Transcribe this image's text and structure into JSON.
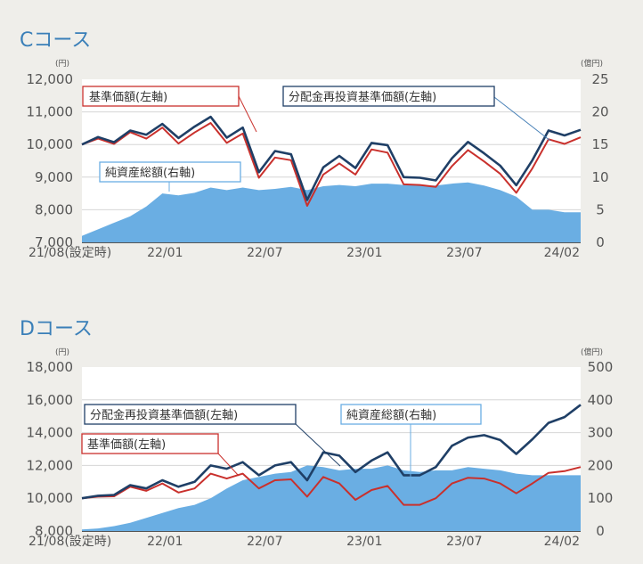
{
  "chart_data": [
    {
      "type": "line",
      "title": "Cコース",
      "left_unit": "(円)",
      "right_unit": "(億円)",
      "ylim_left": [
        7000,
        12000
      ],
      "ylim_right": [
        0,
        25
      ],
      "yticks_left": [
        "12,000",
        "11,000",
        "10,000",
        "9,000",
        "8,000",
        "7,000"
      ],
      "yticks_right": [
        "25",
        "20",
        "15",
        "10",
        "5",
        "0"
      ],
      "x_tick_labels": [
        "21/08(設定時)",
        "22/01",
        "22/07",
        "23/01",
        "23/07",
        "24/02"
      ],
      "x_tick_months": [
        0,
        5,
        11,
        17,
        23,
        30
      ],
      "months": 30,
      "annotations": [
        {
          "name": "label-kijun",
          "text": "基準価額(左軸)"
        },
        {
          "name": "label-bunpai",
          "text": "分配金再投資基準価額(左軸)"
        },
        {
          "name": "label-junshisan",
          "text": "純資産総額(右軸)"
        }
      ],
      "series": [
        {
          "name": "分配金再投資基準価額",
          "axis": "left",
          "color": "#1f3f66",
          "values": [
            10000,
            10230,
            10070,
            10430,
            10300,
            10630,
            10200,
            10550,
            10850,
            10210,
            10520,
            9150,
            9800,
            9700,
            8300,
            9300,
            9650,
            9280,
            10050,
            9980,
            9000,
            8980,
            8900,
            9580,
            10080,
            9730,
            9350,
            8750,
            9520,
            10430,
            10280,
            10450
          ]
        },
        {
          "name": "基準価額",
          "axis": "left",
          "color": "#c9302c",
          "values": [
            10000,
            10180,
            10020,
            10380,
            10180,
            10520,
            10030,
            10370,
            10660,
            10050,
            10340,
            8980,
            9600,
            9520,
            8120,
            9080,
            9420,
            9080,
            9850,
            9750,
            8780,
            8760,
            8700,
            9340,
            9830,
            9480,
            9100,
            8520,
            9270,
            10160,
            10020,
            10220
          ]
        },
        {
          "name": "純資産総額",
          "axis": "right",
          "color": "#6aaee3",
          "values": [
            1,
            2,
            3,
            4,
            5.5,
            7.5,
            7.2,
            7.6,
            8.4,
            8,
            8.4,
            8,
            8.2,
            8.5,
            8,
            8.6,
            8.8,
            8.6,
            9,
            9,
            8.8,
            8.7,
            8.7,
            9,
            9.2,
            8.7,
            8,
            7,
            5,
            5,
            4.6,
            4.6
          ]
        }
      ]
    },
    {
      "type": "line",
      "title": "Dコース",
      "left_unit": "(円)",
      "right_unit": "(億円)",
      "ylim_left": [
        8000,
        18000
      ],
      "ylim_right": [
        0,
        500
      ],
      "yticks_left": [
        "18,000",
        "16,000",
        "14,000",
        "12,000",
        "10,000",
        "8,000"
      ],
      "yticks_right": [
        "500",
        "400",
        "300",
        "200",
        "100",
        "0"
      ],
      "x_tick_labels": [
        "21/08(設定時)",
        "22/01",
        "22/07",
        "23/01",
        "23/07",
        "24/02"
      ],
      "x_tick_months": [
        0,
        5,
        11,
        17,
        23,
        30
      ],
      "months": 30,
      "annotations": [
        {
          "name": "label-bunpai",
          "text": "分配金再投資基準価額(左軸)"
        },
        {
          "name": "label-junshisan",
          "text": "純資産総額(右軸)"
        },
        {
          "name": "label-kijun",
          "text": "基準価額(左軸)"
        }
      ],
      "series": [
        {
          "name": "分配金再投資基準価額",
          "axis": "left",
          "color": "#1f3f66",
          "values": [
            10000,
            10150,
            10200,
            10800,
            10600,
            11100,
            10700,
            11000,
            12000,
            11800,
            12200,
            11400,
            12000,
            12200,
            11100,
            12800,
            12600,
            11600,
            12300,
            12800,
            11400,
            11400,
            11900,
            13200,
            13700,
            13850,
            13550,
            12700,
            13600,
            14600,
            14950,
            15700
          ]
        },
        {
          "name": "基準価額",
          "axis": "left",
          "color": "#c9302c",
          "values": [
            10000,
            10100,
            10120,
            10700,
            10450,
            10900,
            10350,
            10600,
            11500,
            11200,
            11500,
            10600,
            11100,
            11150,
            10100,
            11300,
            10900,
            9900,
            10500,
            10750,
            9600,
            9600,
            10000,
            10900,
            11250,
            11200,
            10900,
            10300,
            10900,
            11550,
            11650,
            11900
          ]
        },
        {
          "name": "純資産総額",
          "axis": "right",
          "color": "#6aaee3",
          "values": [
            5,
            8,
            15,
            25,
            40,
            55,
            70,
            80,
            100,
            130,
            155,
            165,
            175,
            180,
            200,
            195,
            185,
            190,
            190,
            200,
            185,
            180,
            185,
            185,
            195,
            190,
            185,
            175,
            170,
            170,
            170,
            170
          ]
        }
      ]
    }
  ]
}
